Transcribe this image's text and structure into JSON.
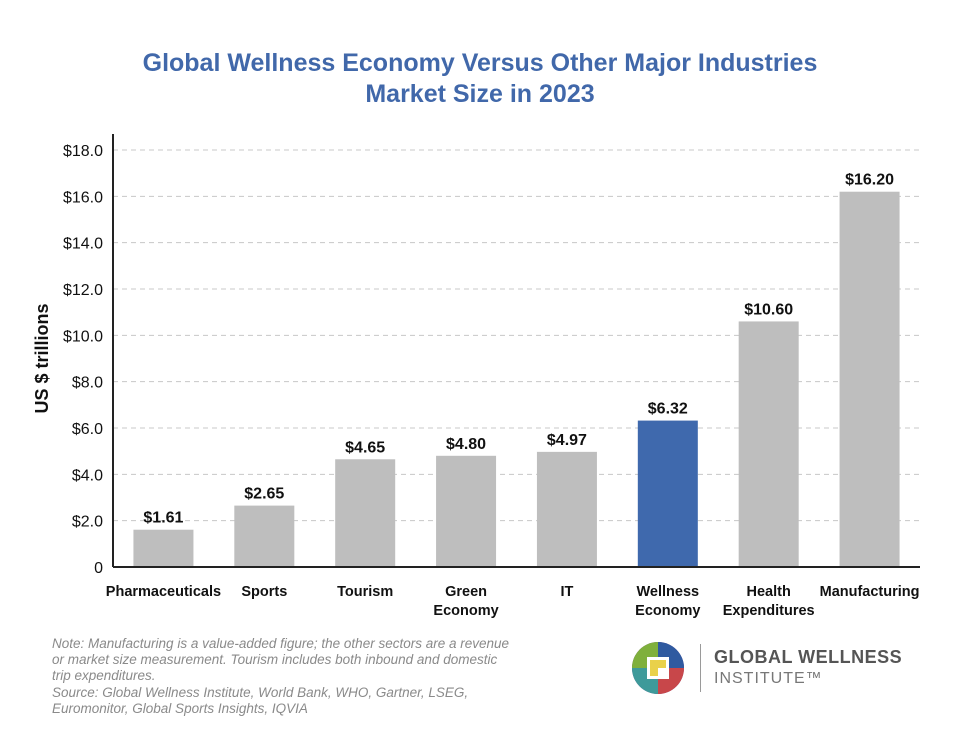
{
  "chart_data": {
    "type": "bar",
    "title": "Global Wellness Economy Versus Other Major Industries",
    "subtitle": "Market Size in 2023",
    "xlabel": "",
    "ylabel": "US $ trillions",
    "ylim": [
      0,
      18
    ],
    "yticks": [
      0,
      2,
      4,
      6,
      8,
      10,
      12,
      14,
      16,
      18
    ],
    "ytick_labels": [
      "0",
      "$2.0",
      "$4.0",
      "$6.0",
      "$8.0",
      "$10.0",
      "$12.0",
      "$14.0",
      "$16.0",
      "$18.0"
    ],
    "grid": true,
    "categories": [
      [
        "Pharmaceuticals"
      ],
      [
        "Sports"
      ],
      [
        "Tourism"
      ],
      [
        "Green",
        "Economy"
      ],
      [
        "IT"
      ],
      [
        "Wellness",
        "Economy"
      ],
      [
        "Health",
        "Expenditures"
      ],
      [
        "Manufacturing"
      ]
    ],
    "values": [
      1.61,
      2.65,
      4.65,
      4.8,
      4.97,
      6.32,
      10.6,
      16.2
    ],
    "value_labels": [
      "$1.61",
      "$2.65",
      "$4.65",
      "$4.80",
      "$4.97",
      "$6.32",
      "$10.60",
      "$16.20"
    ],
    "highlight_index": 5,
    "colors": {
      "bar": "#bebebe",
      "highlight": "#3f69ad",
      "title": "#4168aa",
      "grid": "#c8c8c8",
      "axis": "#222222",
      "text": "#111111"
    }
  },
  "note": {
    "lines": [
      "Note: Manufacturing is a value-added figure; the other sectors are a revenue",
      "or market size measurement. Tourism includes both inbound and domestic",
      "trip expenditures.",
      "Source: Global Wellness Institute, World Bank, WHO, Gartner, LSEG,",
      "Euromonitor, Global Sports Insights, IQVIA"
    ]
  },
  "logo": {
    "line1": "GLOBAL WELLNESS",
    "line2": "INSTITUTE™"
  }
}
